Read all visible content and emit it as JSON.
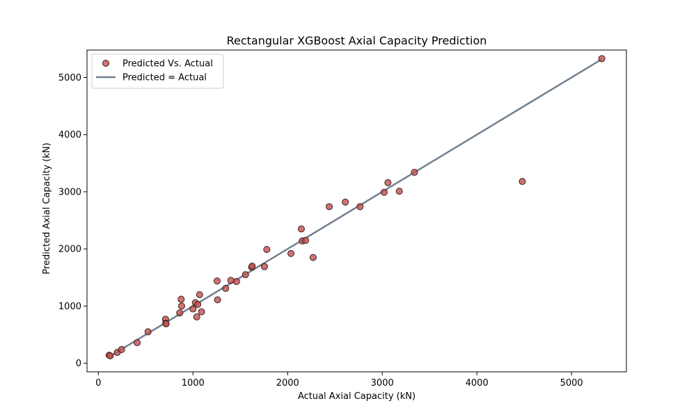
{
  "chart_data": {
    "type": "scatter",
    "title": "Rectangular XGBoost Axial Capacity Prediction",
    "xlabel": "Actual Axial Capacity (kN)",
    "ylabel": "Predicted Axial Capacity (kN)",
    "xlim": [
      -120,
      5580
    ],
    "ylim": [
      -150,
      5480
    ],
    "xticks": [
      0,
      1000,
      2000,
      3000,
      4000,
      5000
    ],
    "yticks": [
      0,
      1000,
      2000,
      3000,
      4000,
      5000
    ],
    "grid": false,
    "legend_position": "upper-left",
    "legend": [
      {
        "label": "Predicted Vs. Actual",
        "kind": "marker"
      },
      {
        "label": "Predicted = Actual",
        "kind": "line"
      }
    ],
    "line": {
      "name": "Predicted = Actual",
      "x": [
        120,
        5320
      ],
      "y": [
        120,
        5320
      ],
      "color": "#708090"
    },
    "scatter": {
      "name": "Predicted Vs. Actual",
      "color": "#c0504d",
      "points": [
        [
          115,
          140
        ],
        [
          125,
          130
        ],
        [
          200,
          190
        ],
        [
          245,
          240
        ],
        [
          410,
          360
        ],
        [
          525,
          550
        ],
        [
          710,
          770
        ],
        [
          712,
          700
        ],
        [
          715,
          690
        ],
        [
          860,
          880
        ],
        [
          875,
          1120
        ],
        [
          880,
          1000
        ],
        [
          1000,
          950
        ],
        [
          1025,
          1060
        ],
        [
          1040,
          810
        ],
        [
          1050,
          1030
        ],
        [
          1070,
          1200
        ],
        [
          1090,
          900
        ],
        [
          1255,
          1440
        ],
        [
          1260,
          1110
        ],
        [
          1345,
          1310
        ],
        [
          1400,
          1450
        ],
        [
          1460,
          1430
        ],
        [
          1555,
          1550
        ],
        [
          1620,
          1680
        ],
        [
          1625,
          1700
        ],
        [
          1755,
          1690
        ],
        [
          1780,
          1990
        ],
        [
          2035,
          1920
        ],
        [
          2145,
          2350
        ],
        [
          2155,
          2140
        ],
        [
          2190,
          2150
        ],
        [
          2270,
          1850
        ],
        [
          2440,
          2740
        ],
        [
          2610,
          2820
        ],
        [
          2765,
          2740
        ],
        [
          3020,
          2990
        ],
        [
          3060,
          3160
        ],
        [
          3180,
          3010
        ],
        [
          3340,
          3340
        ],
        [
          4480,
          3180
        ],
        [
          5320,
          5330
        ]
      ]
    }
  }
}
